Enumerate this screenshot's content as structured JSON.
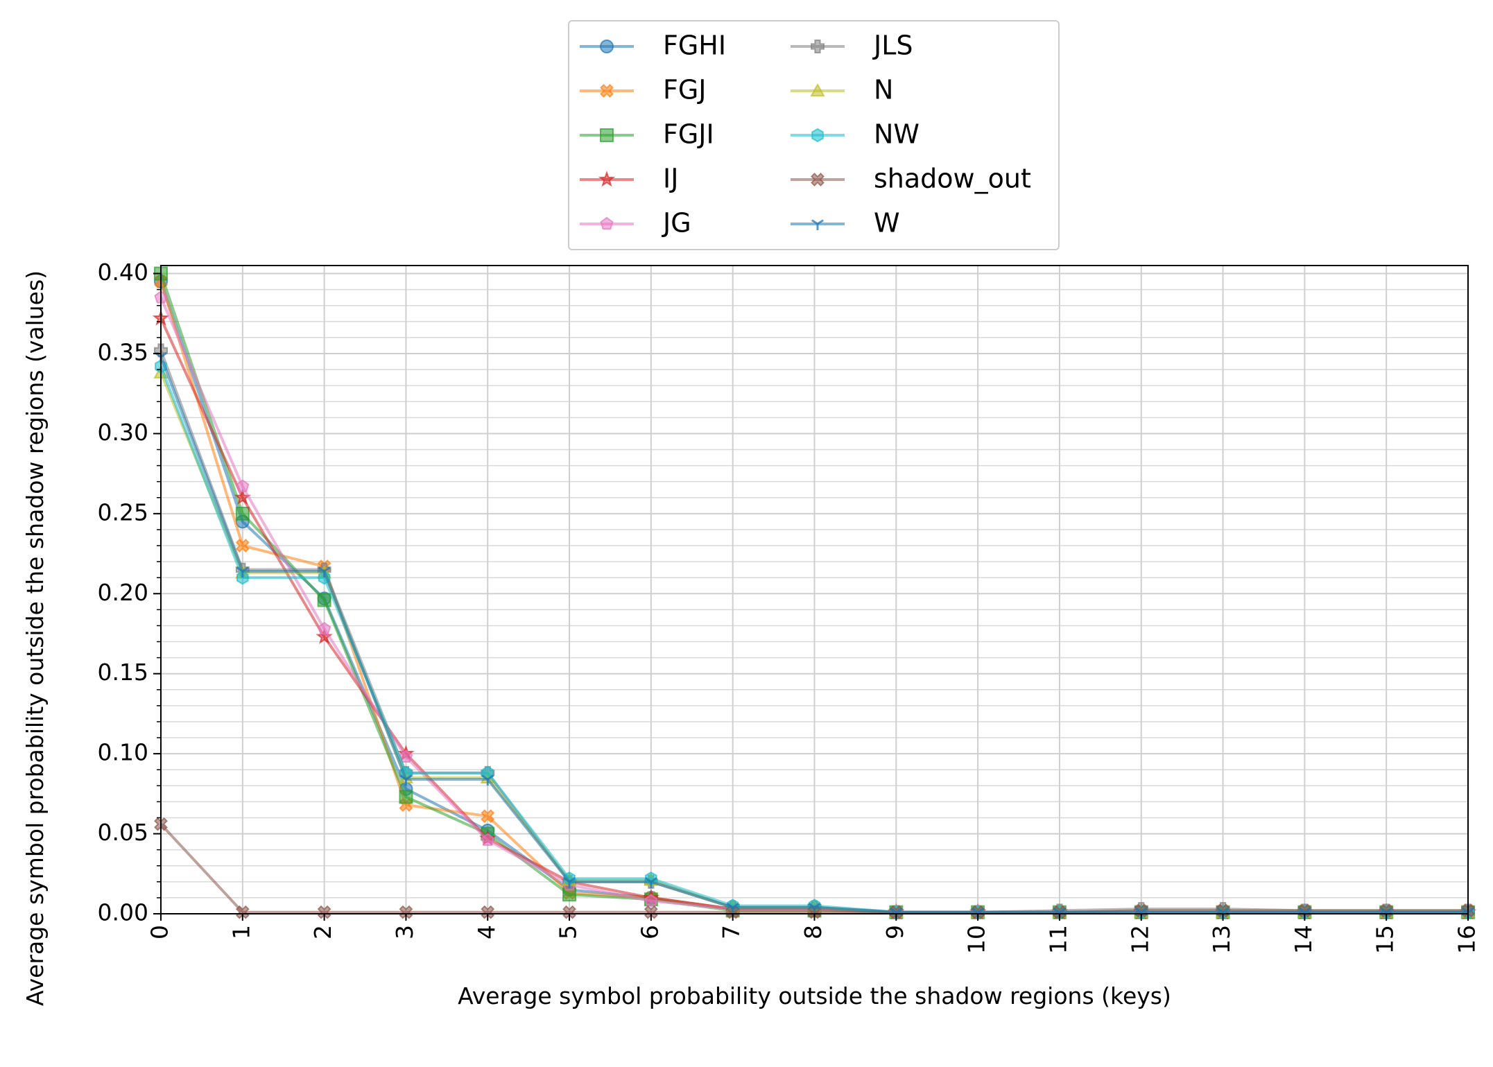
{
  "chart_data": {
    "type": "line",
    "xlabel": "Average symbol probability outside the shadow regions (keys)",
    "ylabel": "Average symbol probability outside the shadow regions (values)",
    "xlim": [
      0,
      16
    ],
    "ylim": [
      0,
      0.405
    ],
    "x_ticks": [
      "0",
      "1",
      "2",
      "3",
      "4",
      "5",
      "6",
      "7",
      "8",
      "9",
      "10",
      "11",
      "12",
      "13",
      "14",
      "15",
      "16"
    ],
    "y_ticks": [
      "0.00",
      "0.05",
      "0.10",
      "0.15",
      "0.20",
      "0.25",
      "0.30",
      "0.35",
      "0.40"
    ],
    "grid": true,
    "legend_position": "top-center, above plot, 2 columns",
    "x": [
      0,
      1,
      2,
      3,
      4,
      5,
      6,
      7,
      8,
      9,
      10,
      11,
      12,
      13,
      14,
      15,
      16
    ],
    "series": [
      {
        "name": "FGHI",
        "color": "#1f77b4",
        "marker": "circle",
        "values": [
          0.395,
          0.245,
          0.197,
          0.078,
          0.052,
          0.015,
          0.01,
          0.003,
          0.003,
          0.001,
          0.001,
          0.001,
          0.001,
          0.001,
          0.001,
          0.001,
          0.001
        ]
      },
      {
        "name": "FGJ",
        "color": "#ff7f0e",
        "marker": "x",
        "values": [
          0.395,
          0.23,
          0.217,
          0.068,
          0.061,
          0.013,
          0.01,
          0.003,
          0.003,
          0.001,
          0.001,
          0.001,
          0.001,
          0.001,
          0.001,
          0.001,
          0.001
        ]
      },
      {
        "name": "FGJI",
        "color": "#2ca02c",
        "marker": "square",
        "values": [
          0.4,
          0.25,
          0.196,
          0.073,
          0.05,
          0.012,
          0.009,
          0.002,
          0.002,
          0.001,
          0.001,
          0.001,
          0.001,
          0.001,
          0.001,
          0.001,
          0.001
        ]
      },
      {
        "name": "IJ",
        "color": "#d62728",
        "marker": "star",
        "values": [
          0.372,
          0.26,
          0.173,
          0.1,
          0.047,
          0.02,
          0.01,
          0.003,
          0.003,
          0.001,
          0.001,
          0.001,
          0.001,
          0.001,
          0.001,
          0.001,
          0.001
        ]
      },
      {
        "name": "JG",
        "color": "#e377c2",
        "marker": "pentagon",
        "values": [
          0.385,
          0.267,
          0.178,
          0.098,
          0.046,
          0.018,
          0.008,
          0.003,
          0.003,
          0.001,
          0.001,
          0.001,
          0.001,
          0.001,
          0.001,
          0.001,
          0.001
        ]
      },
      {
        "name": "JLS",
        "color": "#7f7f7f",
        "marker": "plus",
        "values": [
          0.352,
          0.215,
          0.215,
          0.088,
          0.088,
          0.02,
          0.02,
          0.004,
          0.004,
          0.001,
          0.001,
          0.002,
          0.003,
          0.003,
          0.002,
          0.002,
          0.002
        ]
      },
      {
        "name": "N",
        "color": "#bcbd22",
        "marker": "triangle",
        "values": [
          0.338,
          0.213,
          0.213,
          0.085,
          0.085,
          0.021,
          0.021,
          0.004,
          0.004,
          0.001,
          0.001,
          0.001,
          0.001,
          0.001,
          0.001,
          0.001,
          0.001
        ]
      },
      {
        "name": "NW",
        "color": "#17becf",
        "marker": "hexagon",
        "values": [
          0.342,
          0.21,
          0.21,
          0.088,
          0.088,
          0.022,
          0.022,
          0.005,
          0.005,
          0.001,
          0.001,
          0.001,
          0.001,
          0.001,
          0.001,
          0.001,
          0.001
        ]
      },
      {
        "name": "shadow_out",
        "color": "#8c564b",
        "marker": "x",
        "values": [
          0.056,
          0.001,
          0.001,
          0.001,
          0.001,
          0.001,
          0.001,
          0.001,
          0.001,
          0.001,
          0.001,
          0.001,
          0.002,
          0.002,
          0.002,
          0.002,
          0.002
        ]
      },
      {
        "name": "W",
        "color": "#1f77b4",
        "marker": "tri_down",
        "values": [
          0.348,
          0.214,
          0.214,
          0.084,
          0.084,
          0.02,
          0.02,
          0.004,
          0.004,
          0.001,
          0.001,
          0.001,
          0.001,
          0.001,
          0.001,
          0.001,
          0.001
        ]
      }
    ]
  }
}
